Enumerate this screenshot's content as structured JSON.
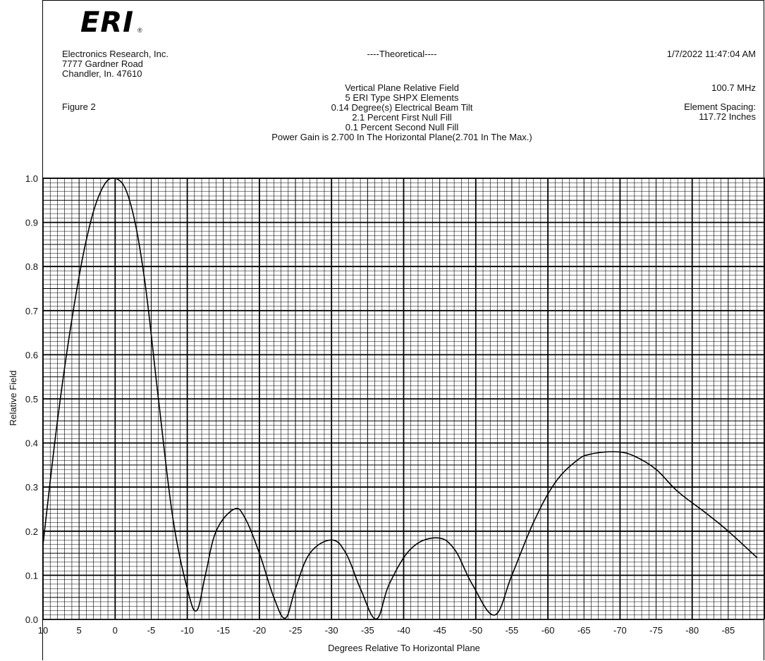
{
  "header": {
    "logo_text": "ERI",
    "company": [
      "Electronics Research, Inc.",
      "7777 Gardner Road",
      "Chandler, In. 47610"
    ],
    "figure": "Figure 2",
    "center_title": "----Theoretical----",
    "center_lines": [
      "Vertical Plane Relative Field",
      "5 ERI Type SHPX Elements",
      "0.14 Degree(s) Electrical Beam Tilt",
      "2.1 Percent First Null Fill",
      "0.1 Percent Second Null Fill",
      "Power Gain is 2.700 In The Horizontal Plane(2.701 In The Max.)"
    ],
    "timestamp": "1/7/2022 11:47:04 AM",
    "frequency": "100.7 MHz",
    "spacing_label": "Element Spacing:",
    "spacing_value": "117.72 Inches"
  },
  "chart_data": {
    "type": "line",
    "xlabel": "Degrees Relative To Horizontal Plane",
    "ylabel": "Relative Field",
    "xlim": [
      10,
      -90
    ],
    "ylim": [
      0,
      1.0
    ],
    "x_ticks": [
      "10",
      "5",
      "0",
      "-5",
      "-10",
      "-15",
      "-20",
      "-25",
      "-30",
      "-35",
      "-40",
      "-45",
      "-50",
      "-55",
      "-60",
      "-65",
      "-70",
      "-75",
      "-80",
      "-85"
    ],
    "y_ticks": [
      "0.0",
      "0.1",
      "0.2",
      "0.3",
      "0.4",
      "0.5",
      "0.6",
      "0.7",
      "0.8",
      "0.9",
      "1.0"
    ],
    "grid": true,
    "series": [
      {
        "x": [
          10,
          8,
          6,
          4,
          2,
          0,
          -2,
          -4,
          -6,
          -8,
          -10,
          -11.3,
          -12.5,
          -14,
          -16.5,
          -18,
          -20,
          -22,
          -23.6,
          -25,
          -27,
          -30,
          -32,
          -34,
          -36.2,
          -38,
          -41,
          -44.5,
          -47,
          -49.5,
          -52.6,
          -55,
          -58,
          -61,
          -64,
          -66,
          -69.5,
          -72,
          -75,
          -78,
          -82,
          -85,
          -89
        ],
        "y": [
          0.17,
          0.45,
          0.68,
          0.86,
          0.97,
          1.0,
          0.95,
          0.78,
          0.5,
          0.23,
          0.07,
          0.02,
          0.1,
          0.2,
          0.25,
          0.23,
          0.15,
          0.05,
          0.003,
          0.07,
          0.15,
          0.18,
          0.15,
          0.07,
          0.001,
          0.08,
          0.16,
          0.185,
          0.16,
          0.08,
          0.01,
          0.1,
          0.22,
          0.31,
          0.36,
          0.375,
          0.38,
          0.37,
          0.34,
          0.29,
          0.24,
          0.2,
          0.14
        ]
      }
    ]
  }
}
